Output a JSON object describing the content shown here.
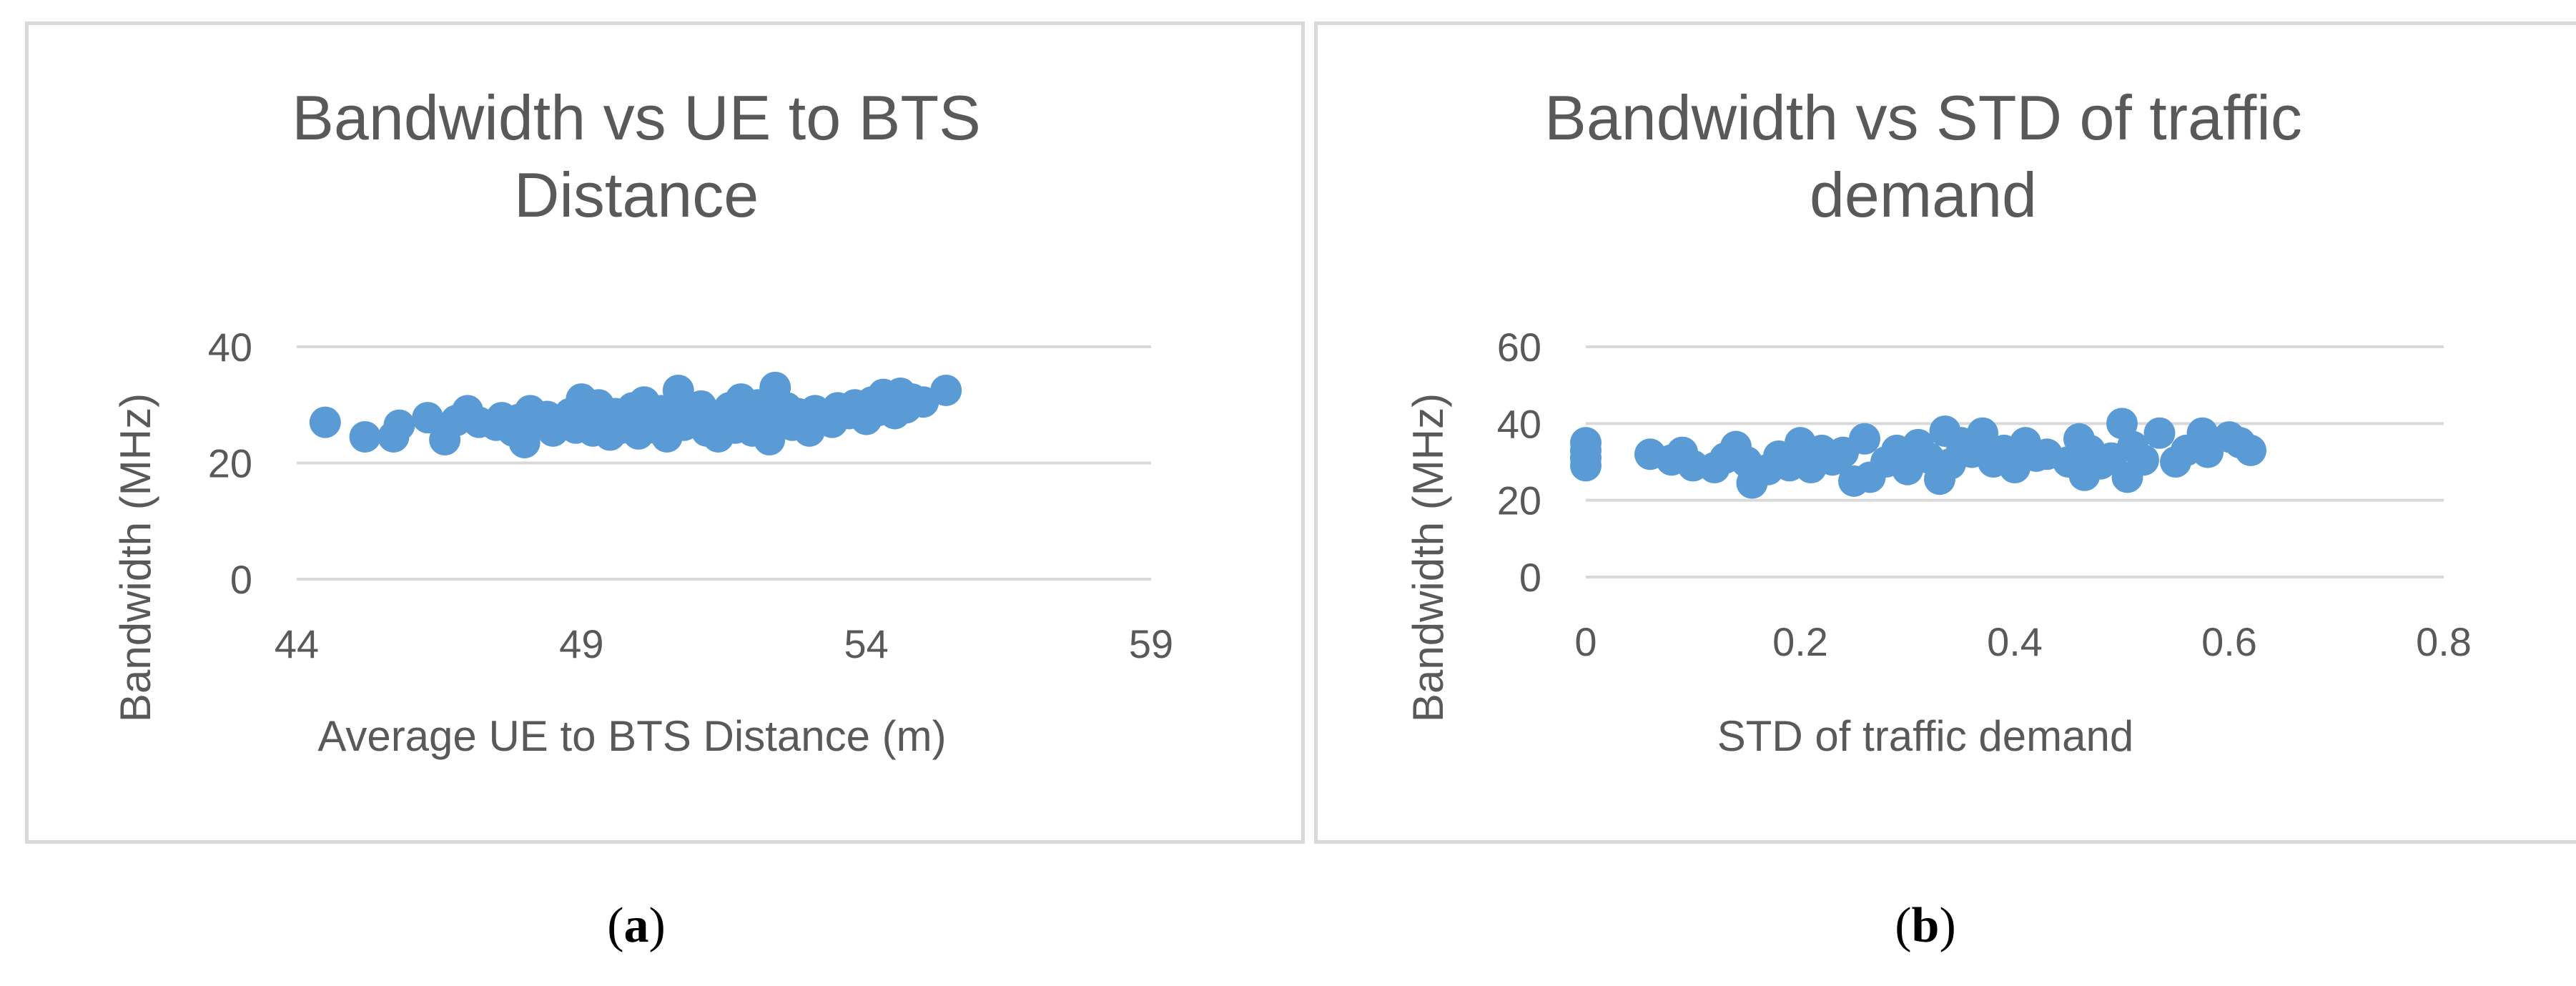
{
  "colors": {
    "marker": "#5b9bd5",
    "gridline": "#d9d9d9",
    "text": "#595959",
    "border": "#d9d9d9"
  },
  "captions": [
    {
      "open": "(",
      "letter": "a",
      "close": ")"
    },
    {
      "open": "(",
      "letter": "b",
      "close": ")"
    }
  ],
  "chart_data": [
    {
      "type": "scatter",
      "title": "Bandwidth vs UE to BTS Distance",
      "xlabel": "Average UE to BTS Distance (m)",
      "ylabel": "Bandwidth (MHz)",
      "xlim": [
        44,
        59
      ],
      "ylim": [
        0,
        40
      ],
      "xticks": [
        44,
        49,
        54,
        59
      ],
      "yticks": [
        0,
        20,
        40
      ],
      "x_tick_labels": [
        "44",
        "49",
        "54",
        "59"
      ],
      "y_tick_labels": [
        "0",
        "20",
        "40"
      ],
      "grid": true,
      "legend": "none",
      "points": [
        [
          44.5,
          27
        ],
        [
          45.2,
          24.5
        ],
        [
          45.7,
          24.5
        ],
        [
          45.8,
          26.5
        ],
        [
          46.3,
          27.8
        ],
        [
          46.6,
          24
        ],
        [
          46.8,
          27.3
        ],
        [
          47.0,
          29
        ],
        [
          47.2,
          27
        ],
        [
          47.5,
          26.5
        ],
        [
          47.6,
          27.8
        ],
        [
          47.8,
          25.5
        ],
        [
          47.9,
          27.5
        ],
        [
          48.0,
          23.5
        ],
        [
          48.1,
          29
        ],
        [
          48.2,
          26.8
        ],
        [
          48.4,
          28
        ],
        [
          48.5,
          25.5
        ],
        [
          48.7,
          27
        ],
        [
          48.8,
          28.5
        ],
        [
          48.9,
          26
        ],
        [
          49.0,
          31
        ],
        [
          49.1,
          28
        ],
        [
          49.2,
          25.5
        ],
        [
          49.3,
          30
        ],
        [
          49.4,
          27
        ],
        [
          49.5,
          24.8
        ],
        [
          49.6,
          28.5
        ],
        [
          49.7,
          26
        ],
        [
          49.8,
          27.8
        ],
        [
          49.9,
          29.5
        ],
        [
          50.0,
          25
        ],
        [
          50.1,
          30.5
        ],
        [
          50.2,
          27.5
        ],
        [
          50.3,
          26
        ],
        [
          50.4,
          29
        ],
        [
          50.5,
          24.5
        ],
        [
          50.6,
          28
        ],
        [
          50.7,
          32.5
        ],
        [
          50.8,
          26.5
        ],
        [
          50.9,
          28.5
        ],
        [
          51.0,
          27
        ],
        [
          51.1,
          29.8
        ],
        [
          51.2,
          25.5
        ],
        [
          51.3,
          28.2
        ],
        [
          51.4,
          24.5
        ],
        [
          51.5,
          27.5
        ],
        [
          51.6,
          29.5
        ],
        [
          51.7,
          26
        ],
        [
          51.8,
          31
        ],
        [
          51.9,
          28
        ],
        [
          52.0,
          25.5
        ],
        [
          52.1,
          30
        ],
        [
          52.2,
          26.5
        ],
        [
          52.3,
          24
        ],
        [
          52.4,
          33
        ],
        [
          52.5,
          27.5
        ],
        [
          52.6,
          29.5
        ],
        [
          52.7,
          26.5
        ],
        [
          52.8,
          28.5
        ],
        [
          52.9,
          27.8
        ],
        [
          53.0,
          25.5
        ],
        [
          53.1,
          29
        ],
        [
          53.2,
          28
        ],
        [
          53.4,
          27
        ],
        [
          53.5,
          29.5
        ],
        [
          53.7,
          28.5
        ],
        [
          53.8,
          30
        ],
        [
          54.0,
          27.5
        ],
        [
          54.1,
          30.5
        ],
        [
          54.2,
          29
        ],
        [
          54.3,
          31.8
        ],
        [
          54.5,
          28.5
        ],
        [
          54.6,
          32
        ],
        [
          54.7,
          29.5
        ],
        [
          54.8,
          31
        ],
        [
          55.0,
          30.5
        ],
        [
          55.4,
          32.5
        ]
      ]
    },
    {
      "type": "scatter",
      "title": "Bandwidth vs STD of traffic demand",
      "xlabel": "STD of traffic demand",
      "ylabel": "Bandwidth (MHz)",
      "xlim": [
        0,
        0.8
      ],
      "ylim": [
        0,
        60
      ],
      "xticks": [
        0,
        0.2,
        0.4,
        0.6,
        0.8
      ],
      "yticks": [
        0,
        20,
        40,
        60
      ],
      "x_tick_labels": [
        "0",
        "0.2",
        "0.4",
        "0.6",
        "0.8"
      ],
      "y_tick_labels": [
        "0",
        "20",
        "40",
        "60"
      ],
      "grid": true,
      "legend": "none",
      "points": [
        [
          0,
          29
        ],
        [
          0,
          31
        ],
        [
          0,
          33
        ],
        [
          0,
          35
        ],
        [
          0.06,
          32
        ],
        [
          0.08,
          30.5
        ],
        [
          0.09,
          32.5
        ],
        [
          0.1,
          29
        ],
        [
          0.12,
          28.5
        ],
        [
          0.13,
          31
        ],
        [
          0.14,
          34
        ],
        [
          0.15,
          30
        ],
        [
          0.155,
          24.5
        ],
        [
          0.17,
          28
        ],
        [
          0.18,
          31.5
        ],
        [
          0.19,
          29
        ],
        [
          0.2,
          35
        ],
        [
          0.21,
          28.5
        ],
        [
          0.22,
          33
        ],
        [
          0.23,
          30.5
        ],
        [
          0.24,
          32.5
        ],
        [
          0.25,
          25
        ],
        [
          0.26,
          36
        ],
        [
          0.265,
          26
        ],
        [
          0.28,
          30
        ],
        [
          0.29,
          33
        ],
        [
          0.3,
          28
        ],
        [
          0.31,
          34.5
        ],
        [
          0.32,
          31
        ],
        [
          0.33,
          25.5
        ],
        [
          0.335,
          38
        ],
        [
          0.34,
          29.5
        ],
        [
          0.35,
          35
        ],
        [
          0.36,
          32.5
        ],
        [
          0.37,
          37.5
        ],
        [
          0.38,
          30
        ],
        [
          0.39,
          33
        ],
        [
          0.4,
          28.5
        ],
        [
          0.41,
          35
        ],
        [
          0.42,
          31.5
        ],
        [
          0.43,
          32
        ],
        [
          0.45,
          30
        ],
        [
          0.46,
          36
        ],
        [
          0.465,
          26.5
        ],
        [
          0.47,
          33
        ],
        [
          0.48,
          29.5
        ],
        [
          0.49,
          31
        ],
        [
          0.5,
          40
        ],
        [
          0.505,
          26
        ],
        [
          0.51,
          34
        ],
        [
          0.52,
          30.5
        ],
        [
          0.535,
          37.5
        ],
        [
          0.55,
          30
        ],
        [
          0.56,
          33
        ],
        [
          0.575,
          37.5
        ],
        [
          0.58,
          32.5
        ],
        [
          0.6,
          36.5
        ],
        [
          0.61,
          35
        ],
        [
          0.62,
          33
        ]
      ]
    }
  ]
}
